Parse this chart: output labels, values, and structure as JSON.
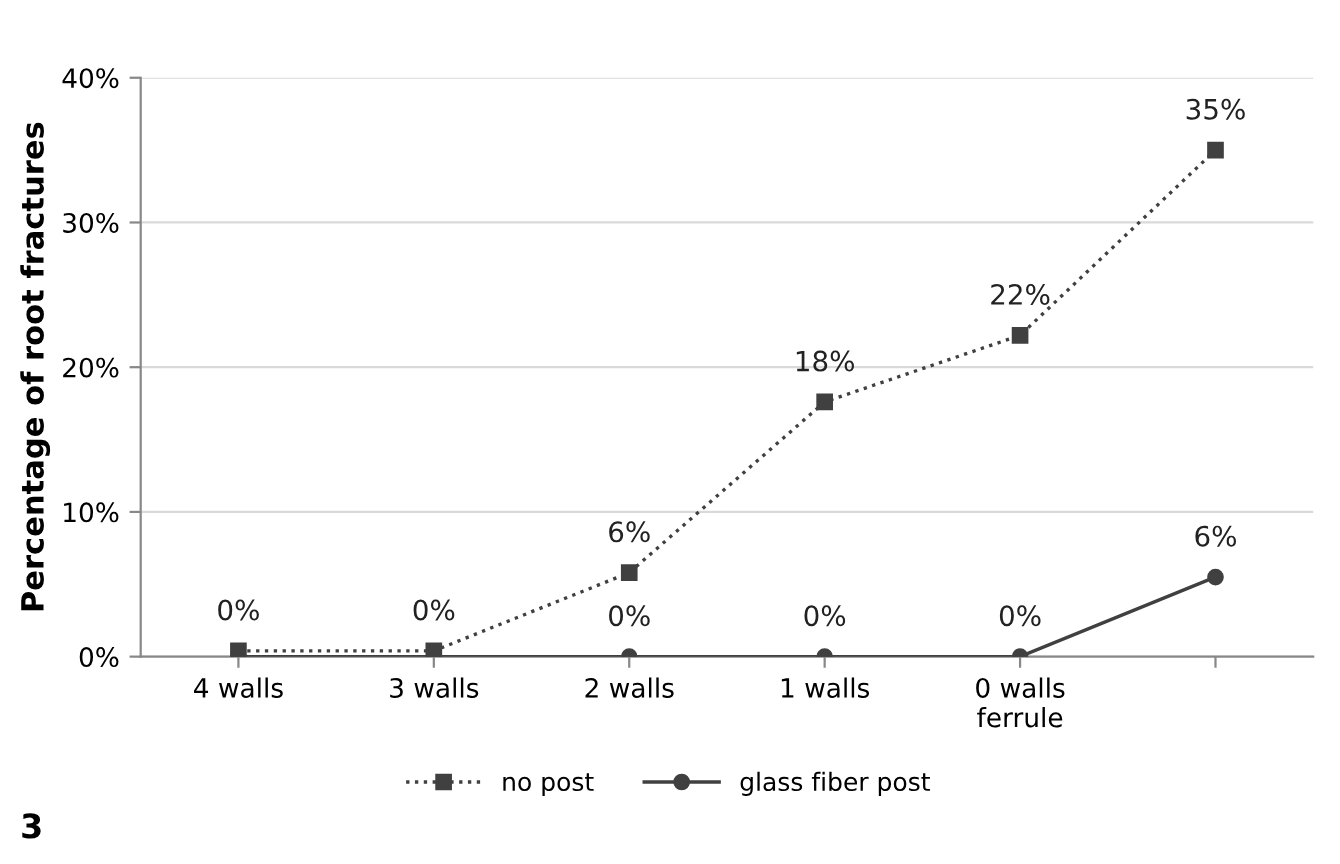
{
  "chart_data": {
    "type": "line",
    "ylabel": "Percentage of root fractures",
    "categories": [
      "4 walls",
      "3 walls",
      "2 walls",
      "1 walls",
      "0 walls\nferrule",
      null
    ],
    "series": [
      {
        "name": "no post",
        "color": "#404040",
        "values": [
          0.4,
          0.4,
          5.8,
          17.6,
          22.2,
          35
        ],
        "value_labels": [
          "0%",
          "0%",
          "6%",
          "18%",
          "22%",
          "35%"
        ],
        "marker": "square",
        "line_style": "dotted"
      },
      {
        "name": "glass fiber post",
        "color": "#404040",
        "values": [
          0,
          0,
          0,
          0,
          0,
          5.5
        ],
        "value_labels": [
          null,
          null,
          "0%",
          "0%",
          "0%",
          "6%"
        ],
        "marker": "circle",
        "line_style": "solid"
      }
    ],
    "ylim": [
      0,
      40
    ],
    "yticks": [
      {
        "value": 0,
        "label": "0%"
      },
      {
        "value": 10,
        "label": "10%"
      },
      {
        "value": 20,
        "label": "20%"
      },
      {
        "value": 30,
        "label": "30%"
      },
      {
        "value": 40,
        "label": "40%"
      }
    ],
    "grid": "y",
    "legend": "bottom",
    "annotations": [
      "3"
    ]
  }
}
